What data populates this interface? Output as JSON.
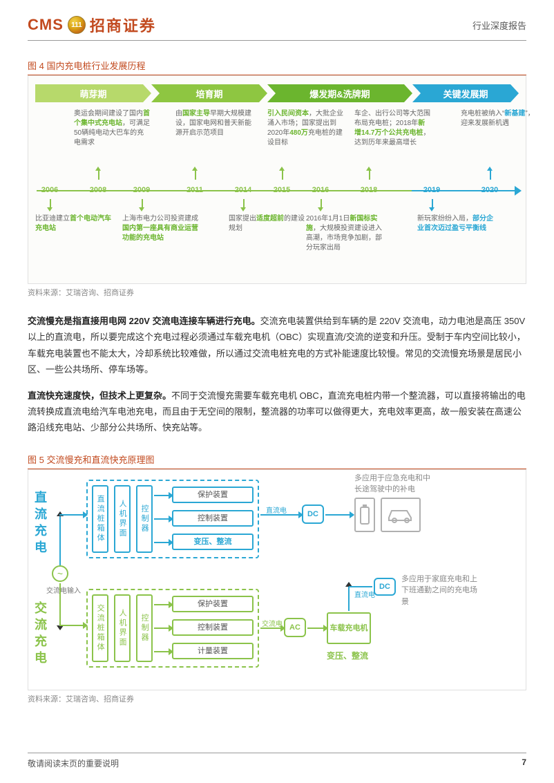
{
  "header": {
    "brand_en": "CMS",
    "brand_cn": "招商证券",
    "badge": "111",
    "doc_type": "行业深度报告"
  },
  "fig4": {
    "caption": "图 4  国内充电桩行业发展历程",
    "source": "资料来源：艾瑞咨询、招商证券",
    "phases": [
      {
        "label": "萌芽期",
        "width_pct": 24,
        "bg": "#b7d96b"
      },
      {
        "label": "培育期",
        "width_pct": 24,
        "bg": "#8ec641"
      },
      {
        "label": "爆发期&洗牌期",
        "width_pct": 30,
        "bg": "#6bb52e"
      },
      {
        "label": "关键发展期",
        "width_pct": 22,
        "bg": "#2aa7d4"
      }
    ],
    "years": [
      {
        "y": "2006",
        "pct": 3,
        "color": "#8bc34a"
      },
      {
        "y": "2008",
        "pct": 13,
        "color": "#8bc34a"
      },
      {
        "y": "2009",
        "pct": 22,
        "color": "#8bc34a"
      },
      {
        "y": "2011",
        "pct": 33,
        "color": "#8bc34a"
      },
      {
        "y": "2014",
        "pct": 43,
        "color": "#8bc34a"
      },
      {
        "y": "2015",
        "pct": 51,
        "color": "#8bc34a"
      },
      {
        "y": "2016",
        "pct": 59,
        "color": "#8bc34a"
      },
      {
        "y": "2018",
        "pct": 69,
        "color": "#8bc34a"
      },
      {
        "y": "2019",
        "pct": 82,
        "color": "#2aa7d4"
      },
      {
        "y": "2020",
        "pct": 94,
        "color": "#2aa7d4"
      }
    ],
    "top_desc": [
      {
        "pct": 8,
        "html": "奥运会期间建设了国内<span class='hl-green'>首个集中式充电站</span>，可满足50辆纯电动大巴车的充电需求"
      },
      {
        "pct": 29,
        "html": "由<span class='hl-green'>国家主导</span>早期大规模建设，国家电网和普天新能源开启示范项目"
      },
      {
        "pct": 48,
        "html": "<span class='hl-green'>引入民间资本</span>，大批企业涌入市场；国家提出到2020年<span class='hl-green'>480万</span>充电桩的建设目标"
      },
      {
        "pct": 66,
        "html": "车企、出行公司等大范围布局充电桩；2018年<span class='hl-green'>新增14.7万个公共充电桩</span>，达到历年来最高增长"
      },
      {
        "pct": 88,
        "html": "充电桩被纳入“<span class='hl-blue'>新基建</span>”，迎来发展新机遇"
      }
    ],
    "bottom_desc": [
      {
        "pct": 0,
        "html": "比亚迪建立<span class='hl-green'>首个电动汽车充电站</span>"
      },
      {
        "pct": 18,
        "html": "上海市电力公司投资建成<span class='hl-green'>国内第一座具有商业运营功能的充电站</span>"
      },
      {
        "pct": 40,
        "html": "国家提出<span class='hl-green'>适度超前</span>的建设规划"
      },
      {
        "pct": 56,
        "html": "2016年1月1日<span class='hl-green'>新国标实施</span>，大规模投资建设进入高潮，市场竞争加剧，部分玩家出局"
      },
      {
        "pct": 79,
        "html": "新玩家纷纷入局，<span class='hl-blue'>部分企业首次迈过盈亏平衡线</span>"
      }
    ]
  },
  "body": {
    "p1_bold": "交流慢充是指直接用电网 220V 交流电连接车辆进行充电。",
    "p1_rest": "交流充电装置供给到车辆的是 220V 交流电，动力电池是高压 350V 以上的直流电，所以要完成这个充电过程必须通过车载充电机（OBC）实现直流/交流的逆变和升压。受制于车内空间比较小，车载充电装置也不能太大，冷却系统比较难做，所以通过交流电桩充电的方式补能速度比较慢。常见的交流慢充场景是居民小区、一些公共场所、停车场等。",
    "p2_bold": "直流快充速度快，但技术上更复杂。",
    "p2_rest": "不同于交流慢充需要车载充电机 OBC，直流充电桩内带一个整流器，可以直接将输出的电流转换成直流电给汽车电池充电，而且由于无空间的限制，整流器的功率可以做得更大，充电效率更高，故一般安装在高速公路沿线充电站、少部分公共场所、快充站等。"
  },
  "fig5": {
    "caption": "图 5  交流慢充和直流快充原理图",
    "source": "资料来源：艾瑞咨询、招商证券",
    "colors": {
      "dc": "#2aa7d4",
      "ac": "#8bc34a",
      "grey": "#b0b0b0"
    },
    "labels": {
      "dc_v": "直流充电",
      "ac_v": "交流充电",
      "box": "直流桩箱体",
      "box_ac": "交流桩箱体",
      "hmi": "人机界面",
      "ctrl": "控制器",
      "protect": "保护装置",
      "control": "控制装置",
      "transform": "变压、整流",
      "meter": "计量装置",
      "ac_in": "交流电输入",
      "dc_e": "直流电",
      "ac_e": "交流电",
      "dc_tag": "DC",
      "ac_tag": "AC",
      "obc": "车载充电机",
      "note_dc": "多应用于应急充电和中长途驾驶中的补电",
      "note_ac": "多应用于家庭充电和上下班通勤之间的充电场景"
    }
  },
  "footer": {
    "note": "敬请阅读末页的重要说明",
    "page": "7"
  }
}
